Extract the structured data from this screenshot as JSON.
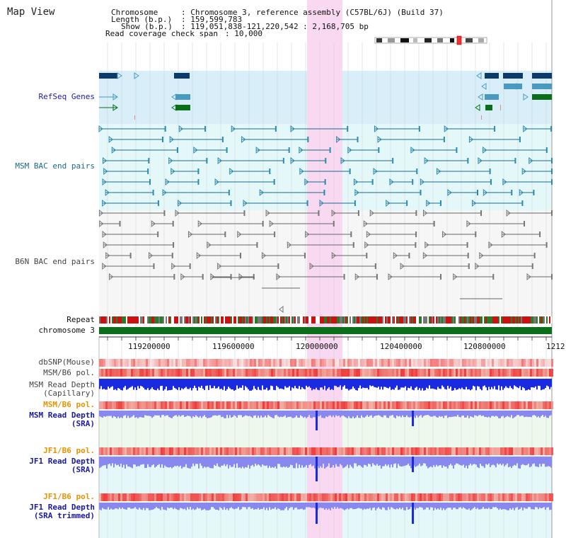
{
  "app": {
    "title": "Map View"
  },
  "info": {
    "chromosome_key": "Chromosome",
    "chromosome_value": ": Chromosome 3, reference assembly (C57BL/6J) (Build 37)",
    "length_key": "Length (b.p.)",
    "length_value": ": 159,599,783",
    "show_key": "Show (b.p.)",
    "show_value": ": 119,051,838-121,220,542 : 2,168,705 bp",
    "coverage_key": "Read coverage check span",
    "coverage_value": ": 10,000"
  },
  "tracks": {
    "refseq": "RefSeq Genes",
    "msm_bac": "MSM BAC end pairs",
    "b6n_bac": "B6N BAC end pairs",
    "repeat": "Repeat",
    "chromosome": "chromosome 3",
    "dbsnp": "dbSNP(Mouse)",
    "msm_b6_pol": "MSM/B6 pol.",
    "msm_depth_cap_1": "MSM Read Depth",
    "msm_depth_cap_2": "(Capillary)",
    "msm_b6_pol_2": "MSM/B6 pol.",
    "msm_depth_sra_1": "MSM Read Depth",
    "msm_depth_sra_2": "(SRA)",
    "jf1_b6_pol": "JF1/B6 pol.",
    "jf1_depth_sra_1": "JF1 Read Depth",
    "jf1_depth_sra_2": "(SRA)",
    "jf1_b6_pol_2": "JF1/B6 pol.",
    "jf1_depth_trim_1": "JF1 Read Depth",
    "jf1_depth_trim_2": "(SRA trimmed)"
  },
  "axis": {
    "ticks": [
      "119200000",
      "119600000",
      "120000000",
      "120400000",
      "120800000",
      "1212"
    ]
  },
  "colors": {
    "highlight": "#f9d8f1",
    "refseq_bg": "#d8eef8",
    "msm_bg": "#e4f8f9",
    "b6n_bg": "#f6f6f6",
    "gene_navy": "#0b3a6b",
    "gene_teal": "#4a9ac0",
    "gene_green": "#0a6e1a",
    "chromosome_bar": "#0a6e1a",
    "depth_blue": "#1a2ae0",
    "depth_light": "#8888ee"
  }
}
